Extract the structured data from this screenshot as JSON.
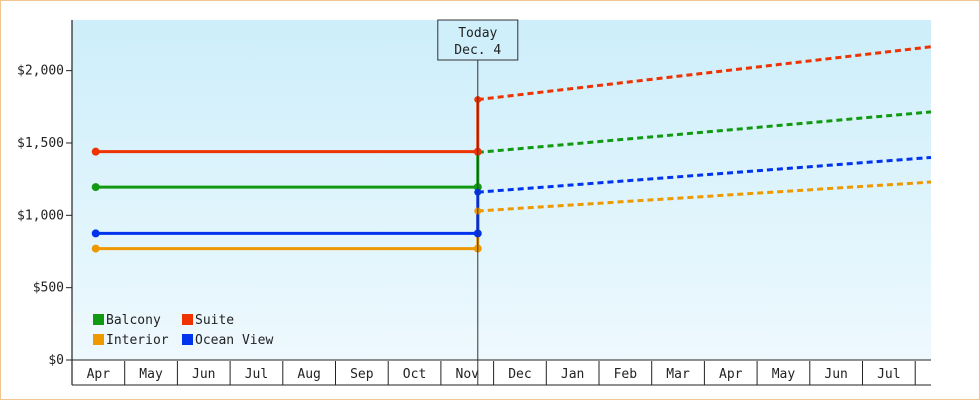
{
  "chart_data": {
    "type": "line",
    "title": "",
    "xlabel": "",
    "ylabel": "",
    "ylim": [
      0,
      2350
    ],
    "y_ticks": [
      0,
      500,
      1000,
      1500,
      2000
    ],
    "y_tick_labels": [
      "$0",
      "$500",
      "$1,000",
      "$1,500",
      "$2,000"
    ],
    "x_categories": [
      "Apr",
      "May",
      "Jun",
      "Jul",
      "Aug",
      "Sep",
      "Oct",
      "Nov",
      "Dec",
      "Jan",
      "Feb",
      "Mar",
      "Apr",
      "May",
      "Jun",
      "Jul"
    ],
    "grid": false,
    "background": "light-blue gradient",
    "legend_position": "bottom-left",
    "annotation": {
      "line1": "Today",
      "line2": "Dec. 4",
      "x": 7.2
    },
    "series": [
      {
        "name": "Balcony",
        "color": "#119911",
        "history": [
          [
            -0.05,
            1195
          ],
          [
            7.2,
            1195
          ]
        ],
        "forecast": [
          [
            7.2,
            1435
          ],
          [
            16.3,
            1715
          ]
        ]
      },
      {
        "name": "Suite",
        "color": "#ee3300",
        "history": [
          [
            -0.05,
            1440
          ],
          [
            7.2,
            1440
          ]
        ],
        "forecast": [
          [
            7.2,
            1800
          ],
          [
            16.3,
            2165
          ]
        ]
      },
      {
        "name": "Interior",
        "color": "#ee9900",
        "history": [
          [
            -0.05,
            770
          ],
          [
            7.2,
            770
          ]
        ],
        "forecast": [
          [
            7.2,
            1030
          ],
          [
            16.3,
            1230
          ]
        ]
      },
      {
        "name": "Ocean View",
        "color": "#0033ee",
        "history": [
          [
            -0.05,
            875
          ],
          [
            7.2,
            875
          ]
        ],
        "forecast": [
          [
            7.2,
            1160
          ],
          [
            16.3,
            1400
          ]
        ]
      }
    ],
    "legend_order": [
      "Balcony",
      "Suite",
      "Interior",
      "Ocean View"
    ]
  }
}
